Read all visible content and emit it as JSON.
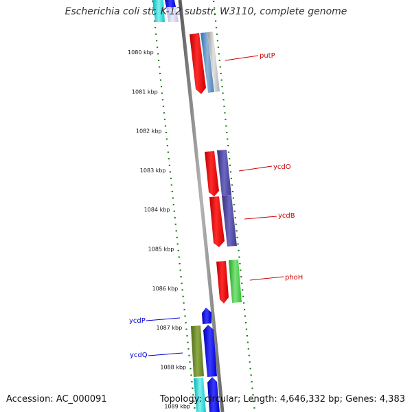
{
  "title": "Escherichia coli str. K-12 substr. W3110, complete genome",
  "accession": "Accession: AC_000091",
  "summary": "Topology: circular; Length: 4,646,332 bp; Genes: 4,383",
  "colors": {
    "backbone": "#8a8a8a",
    "tick": "#1a7a1a",
    "forward_label": "#cc0000",
    "reverse_label": "#0000cc",
    "cds": "#ff0000"
  },
  "scale_marks": [
    {
      "label": "1080 kbp"
    },
    {
      "label": "1081 kbp"
    },
    {
      "label": "1082 kbp"
    },
    {
      "label": "1083 kbp"
    },
    {
      "label": "1084 kbp"
    },
    {
      "label": "1085 kbp"
    },
    {
      "label": "1086 kbp"
    },
    {
      "label": "1087 kbp"
    },
    {
      "label": "1088 kbp"
    },
    {
      "label": "1089 kbp"
    }
  ],
  "labeled_genes": [
    {
      "name": "putP",
      "strand": "forward"
    },
    {
      "name": "ycdO",
      "strand": "forward"
    },
    {
      "name": "ycdB",
      "strand": "forward"
    },
    {
      "name": "phoH",
      "strand": "forward"
    },
    {
      "name": "ycdP",
      "strand": "reverse"
    },
    {
      "name": "ycdQ",
      "strand": "reverse"
    }
  ]
}
